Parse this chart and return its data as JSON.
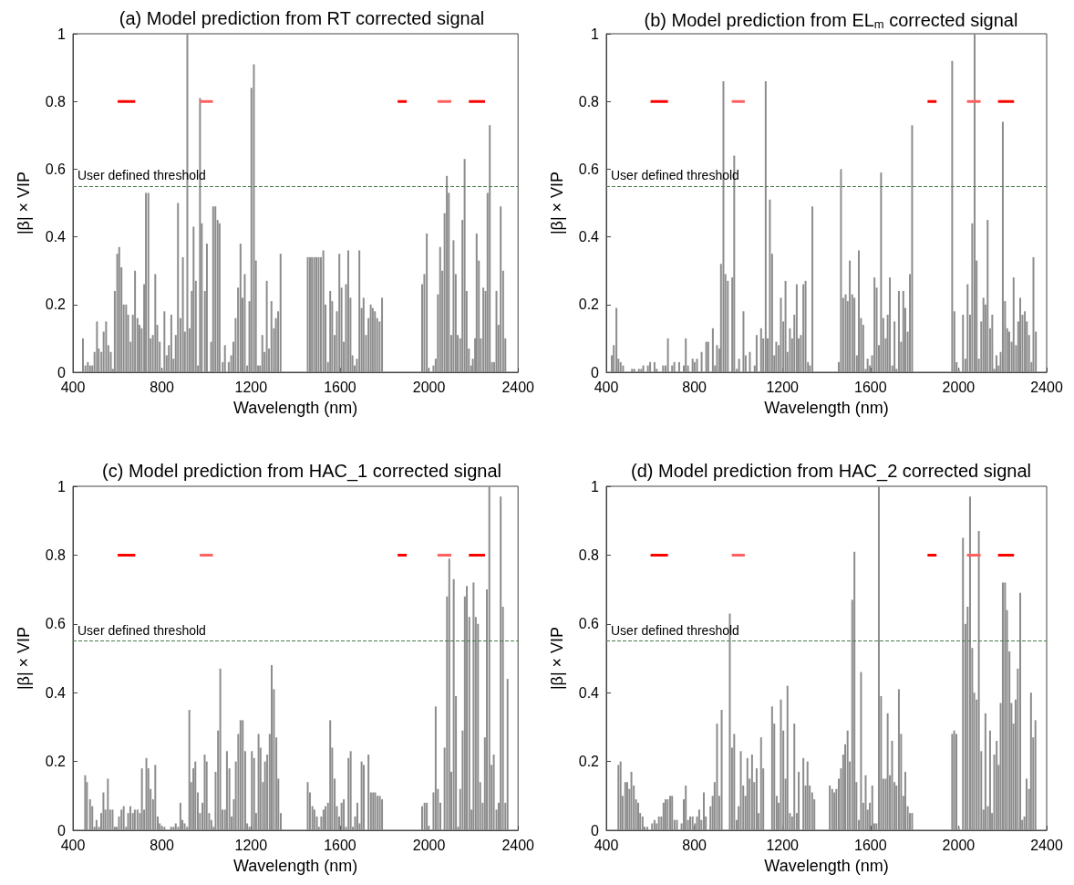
{
  "chart_data": [
    {
      "type": "bar",
      "title": "(a) Model prediction from RT corrected signal",
      "xlabel": "Wavelength (nm)",
      "ylabel": "|β| × VIP",
      "xlim": [
        400,
        2400
      ],
      "xticks": [
        400,
        800,
        1200,
        1600,
        2000,
        2400
      ],
      "ylim": [
        0,
        1
      ],
      "yticks": [
        0,
        0.2,
        0.4,
        0.6,
        0.8,
        1
      ],
      "marker": "none",
      "grid": false,
      "ref_lines": [
        {
          "axis": "y",
          "value": 0.55,
          "label": "User defined threshold",
          "color": "#4a7a4a",
          "line_style": "dashed"
        }
      ],
      "series": [
        {
          "color": "#8c8c8c",
          "x": [
            445,
            456,
            467,
            477,
            487,
            497,
            508,
            516,
            528,
            538,
            549,
            559,
            570,
            579,
            588,
            599,
            608,
            618,
            628,
            639,
            648,
            659,
            669,
            679,
            690,
            699,
            709,
            720,
            728,
            739,
            749,
            759,
            770,
            779,
            790,
            800,
            811,
            821,
            831,
            842,
            852,
            862,
            872,
            883,
            894,
            903,
            914,
            924,
            934,
            942,
            952,
            962,
            971,
            979,
            993,
            1002,
            1021,
            1030,
            1040,
            1050,
            1059,
            1073,
            1083,
            1100,
            1111,
            1121,
            1131,
            1142,
            1153,
            1162,
            1172,
            1183,
            1193,
            1202,
            1213,
            1222,
            1232,
            1241,
            1251,
            1261,
            1271,
            1281,
            1292,
            1303,
            1312,
            1322,
            1333,
            1455,
            1465,
            1474,
            1484,
            1494,
            1504,
            1514,
            1525,
            1535,
            1546,
            1556,
            1565,
            1576,
            1586,
            1597,
            1607,
            1617,
            1627,
            1637,
            1647,
            1656,
            1666,
            1676,
            1687,
            1697,
            1706,
            1717,
            1728,
            1738,
            1747,
            1757,
            1767,
            1778,
            1789,
            1969,
            1979,
            1990,
            1999,
            2020,
            2030,
            2040,
            2050,
            2060,
            2070,
            2080,
            2089,
            2100,
            2110,
            2120,
            2129,
            2140,
            2150,
            2160,
            2169,
            2179,
            2189,
            2197,
            2207,
            2214,
            2224,
            2233,
            2244,
            2254,
            2263,
            2273,
            2283,
            2293,
            2303,
            2312,
            2322,
            2333,
            2343
          ],
          "values": [
            0.1,
            0.02,
            0.03,
            0.02,
            0.02,
            0.06,
            0.15,
            0.07,
            0.06,
            0.12,
            0.15,
            0.08,
            0.06,
            0.01,
            0.24,
            0.35,
            0.37,
            0.31,
            0.2,
            0.2,
            0.17,
            0.09,
            0.17,
            0.3,
            0.16,
            0.14,
            0.13,
            0.26,
            0.53,
            0.53,
            0.1,
            0.11,
            0.29,
            0.14,
            0.09,
            0.01,
            0.18,
            0.05,
            0.08,
            0.17,
            0.04,
            0.11,
            0.5,
            0.16,
            0.34,
            0.12,
            1.0,
            0.13,
            0.24,
            0.43,
            0.27,
            0.02,
            0.81,
            0.44,
            0.24,
            0.38,
            0.09,
            0.49,
            0.49,
            0.45,
            0.44,
            0.03,
            0.08,
            0.03,
            0.05,
            0.09,
            0.16,
            0.25,
            0.38,
            0.22,
            0.29,
            0.02,
            0.21,
            0.84,
            0.91,
            0.33,
            0.02,
            0.02,
            0.11,
            0.06,
            0.27,
            0.07,
            0.21,
            0.13,
            0.16,
            0.18,
            0.35,
            0.34,
            0.34,
            0.34,
            0.34,
            0.34,
            0.34,
            0.34,
            0.36,
            0.2,
            0.03,
            0.24,
            0.21,
            0.11,
            0.18,
            0.35,
            0.25,
            0.09,
            0.26,
            0.36,
            0.22,
            0.05,
            0.02,
            0.04,
            0.36,
            0.19,
            0.22,
            0.11,
            0.16,
            0.2,
            0.19,
            0.18,
            0.16,
            0.15,
            0.22,
            0.26,
            0.29,
            0.41,
            0.01,
            0.02,
            0.04,
            0.23,
            0.37,
            0.3,
            0.47,
            0.58,
            0.53,
            0.11,
            0.39,
            0.29,
            0.11,
            0.1,
            0.45,
            0.63,
            0.24,
            0.07,
            0.02,
            0.04,
            0.1,
            0.41,
            0.33,
            0.1,
            0.25,
            0.24,
            0.53,
            0.73,
            0.03,
            0.03,
            0.24,
            0.14,
            0.49,
            0.3,
            0.1
          ]
        },
        {
          "type": "line",
          "color": "#ff0000",
          "x": [
            601,
            680,
            1270,
            1859,
            1900,
            2040,
            2179,
            2252
          ],
          "values": [
            0.8,
            0.8,
            null,
            0.8,
            0.8,
            null,
            0.8,
            0.8
          ]
        },
        {
          "type": "line",
          "color": "#ff6060",
          "x": [
            970,
            1029,
            1530,
            2038,
            2100
          ],
          "values": [
            0.8,
            0.8,
            null,
            0.8,
            0.8
          ]
        }
      ]
    },
    {
      "type": "bar",
      "title": "(b) Model prediction from EL$_{m}$ corrected signal",
      "xlabel": "Wavelength (nm)",
      "ylabel": "|β| × VIP",
      "xlim": [
        400,
        2400
      ],
      "xticks": [
        400,
        800,
        1200,
        1600,
        2000,
        2400
      ],
      "ylim": [
        0,
        1
      ],
      "yticks": [
        0,
        0.2,
        0.4,
        0.6,
        0.8,
        1
      ],
      "marker": "none",
      "grid": false,
      "ref_lines": [
        {
          "axis": "y",
          "value": 0.55,
          "label": "User defined threshold",
          "color": "#4a7a4a",
          "line_style": "dashed"
        }
      ],
      "series": [
        {
          "color": "#8c8c8c",
          "x": [
            425,
            434,
            446,
            455,
            465,
            476,
            497,
            517,
            527,
            548,
            559,
            568,
            589,
            599,
            619,
            629,
            658,
            669,
            680,
            699,
            709,
            731,
            752,
            761,
            771,
            792,
            801,
            812,
            833,
            854,
            863,
            884,
            894,
            903,
            914,
            921,
            932,
            941,
            952,
            972,
            981,
            993,
            1003,
            1023,
            1033,
            1052,
            1074,
            1083,
            1103,
            1113,
            1124,
            1133,
            1143,
            1153,
            1163,
            1172,
            1183,
            1193,
            1204,
            1214,
            1223,
            1234,
            1244,
            1254,
            1265,
            1274,
            1284,
            1295,
            1305,
            1316,
            1325,
            1336,
            1456,
            1466,
            1476,
            1487,
            1496,
            1506,
            1517,
            1527,
            1538,
            1547,
            1557,
            1567,
            1578,
            1587,
            1597,
            1607,
            1618,
            1628,
            1638,
            1648,
            1658,
            1669,
            1678,
            1688,
            1699,
            1709,
            1718,
            1729,
            1739,
            1749,
            1758,
            1769,
            1779,
            1789,
            1971,
            1981,
            1991,
            2001,
            2020,
            2031,
            2041,
            2052,
            2062,
            2073,
            2082,
            2092,
            2103,
            2113,
            2122,
            2132,
            2143,
            2153,
            2162,
            2172,
            2182,
            2191,
            2201,
            2211,
            2221,
            2230,
            2241,
            2250,
            2261,
            2271,
            2280,
            2290,
            2301,
            2310,
            2320,
            2331,
            2340,
            2351
          ],
          "values": [
            0.05,
            0.08,
            0.19,
            0.04,
            0.03,
            0.02,
            0.0,
            0.01,
            0.01,
            0.01,
            0.01,
            0.02,
            0.02,
            0.03,
            0.03,
            0.01,
            0.02,
            0.02,
            0.1,
            0.02,
            0.03,
            0.03,
            0.02,
            0.1,
            0.02,
            0.04,
            0.03,
            0.04,
            0.06,
            0.09,
            0.09,
            0.13,
            0.02,
            0.08,
            0.07,
            0.32,
            0.86,
            0.29,
            0.27,
            0.28,
            0.64,
            0.01,
            0.04,
            0.18,
            0.05,
            0.06,
            0.02,
            0.11,
            0.13,
            0.1,
            0.86,
            0.1,
            0.51,
            0.35,
            0.05,
            0.09,
            0.08,
            0.22,
            0.15,
            0.27,
            0.06,
            0.13,
            0.1,
            0.17,
            0.26,
            0.1,
            0.11,
            0.26,
            0.27,
            0.03,
            0.02,
            0.49,
            0.03,
            0.6,
            0.22,
            0.23,
            0.21,
            0.33,
            0.23,
            0.22,
            0.05,
            0.36,
            0.16,
            0.14,
            0.01,
            0.04,
            0.02,
            0.05,
            0.28,
            0.25,
            0.08,
            0.59,
            0.16,
            0.1,
            0.17,
            0.28,
            0.02,
            0.15,
            0.01,
            0.24,
            0.09,
            0.24,
            0.19,
            0.12,
            0.29,
            0.73,
            0.92,
            0.18,
            0.03,
            0.01,
            0.17,
            0.04,
            0.26,
            0.17,
            0.44,
            1.0,
            0.33,
            0.04,
            0.15,
            0.22,
            0.2,
            0.45,
            0.13,
            0.17,
            0.01,
            0.05,
            0.02,
            0.06,
            0.74,
            0.21,
            0.13,
            0.12,
            0.09,
            0.28,
            0.08,
            0.15,
            0.22,
            0.17,
            0.18,
            0.15,
            0.11,
            0.03,
            0.34,
            0.12
          ]
        },
        {
          "type": "line",
          "color": "#ff0000",
          "x": [
            601,
            680,
            1270,
            1859,
            1900,
            2040,
            2179,
            2252
          ],
          "values": [
            0.8,
            0.8,
            null,
            0.8,
            0.8,
            null,
            0.8,
            0.8
          ]
        },
        {
          "type": "line",
          "color": "#ff6060",
          "x": [
            970,
            1029,
            1530,
            2038,
            2100
          ],
          "values": [
            0.8,
            0.8,
            null,
            0.8,
            0.8
          ]
        }
      ]
    },
    {
      "type": "bar",
      "title": "(c) Model prediction from HAC_1 corrected signal",
      "xlabel": "Wavelength (nm)",
      "ylabel": "|β| × VIP",
      "xlim": [
        400,
        2400
      ],
      "xticks": [
        400,
        800,
        1200,
        1600,
        2000,
        2400
      ],
      "ylim": [
        0,
        1
      ],
      "yticks": [
        0,
        0.2,
        0.4,
        0.6,
        0.8,
        1
      ],
      "marker": "none",
      "grid": false,
      "ref_lines": [
        {
          "axis": "y",
          "value": 0.55,
          "label": "User defined threshold",
          "color": "#4a7a4a",
          "line_style": "dashed"
        }
      ],
      "series": [
        {
          "color": "#8c8c8c",
          "x": [
            455,
            463,
            477,
            487,
            497,
            506,
            517,
            527,
            537,
            546,
            557,
            567,
            578,
            588,
            597,
            607,
            618,
            628,
            639,
            648,
            658,
            669,
            678,
            690,
            701,
            710,
            720,
            730,
            739,
            749,
            760,
            770,
            781,
            790,
            800,
            811,
            821,
            841,
            852,
            862,
            873,
            883,
            892,
            902,
            913,
            923,
            931,
            941,
            950,
            961,
            971,
            982,
            992,
            1001,
            1012,
            1022,
            1032,
            1041,
            1052,
            1062,
            1072,
            1083,
            1092,
            1103,
            1113,
            1123,
            1132,
            1143,
            1153,
            1163,
            1174,
            1183,
            1193,
            1204,
            1214,
            1223,
            1234,
            1243,
            1254,
            1263,
            1273,
            1284,
            1293,
            1303,
            1314,
            1323,
            1334,
            1455,
            1465,
            1476,
            1485,
            1496,
            1505,
            1516,
            1526,
            1535,
            1546,
            1556,
            1565,
            1576,
            1586,
            1596,
            1607,
            1617,
            1627,
            1638,
            1648,
            1658,
            1668,
            1678,
            1688,
            1697,
            1707,
            1718,
            1728,
            1739,
            1749,
            1758,
            1769,
            1779,
            1789,
            1969,
            1980,
            1990,
            1999,
            2020,
            2030,
            2040,
            2051,
            2070,
            2081,
            2091,
            2100,
            2111,
            2121,
            2131,
            2140,
            2151,
            2161,
            2170,
            2181,
            2191,
            2200,
            2210,
            2220,
            2230,
            2241,
            2251,
            2260,
            2271,
            2281,
            2291,
            2303,
            2313,
            2322,
            2332,
            2343,
            2353
          ],
          "values": [
            0.16,
            0.14,
            0.09,
            0.07,
            0.01,
            0.03,
            0.01,
            0.05,
            0.11,
            0.06,
            0.15,
            0.06,
            0.06,
            0.01,
            0.01,
            0.04,
            0.06,
            0.07,
            0.01,
            0.05,
            0.07,
            0.05,
            0.06,
            0.06,
            0.05,
            0.18,
            0.06,
            0.21,
            0.18,
            0.12,
            0.09,
            0.19,
            0.04,
            0.02,
            0.01,
            0.01,
            0.0,
            0.01,
            0.01,
            0.02,
            0.01,
            0.08,
            0.03,
            0.02,
            0.01,
            0.35,
            0.14,
            0.18,
            0.2,
            0.11,
            0.05,
            0.08,
            0.22,
            0.2,
            0.05,
            0.03,
            0.01,
            0.17,
            0.29,
            0.47,
            0.06,
            0.06,
            0.23,
            0.18,
            0.04,
            0.09,
            0.2,
            0.28,
            0.32,
            0.32,
            0.23,
            0.02,
            0.01,
            0.23,
            0.21,
            0.05,
            0.28,
            0.24,
            0.14,
            0.2,
            0.22,
            0.28,
            0.48,
            0.41,
            0.27,
            0.15,
            0.05,
            0.14,
            0.11,
            0.07,
            0.06,
            0.04,
            0.01,
            0.04,
            0.06,
            0.07,
            0.08,
            0.32,
            0.24,
            0.15,
            0.07,
            0.04,
            0.08,
            0.09,
            0.01,
            0.21,
            0.23,
            0.01,
            0.04,
            0.08,
            0.02,
            0.2,
            0.19,
            0.0,
            0.22,
            0.11,
            0.11,
            0.11,
            0.1,
            0.1,
            0.09,
            0.07,
            0.08,
            0.08,
            0.01,
            0.11,
            0.36,
            0.12,
            0.08,
            0.24,
            0.68,
            0.79,
            0.17,
            0.73,
            0.39,
            0.01,
            0.12,
            0.29,
            0.68,
            0.71,
            0.62,
            0.06,
            0.72,
            0.62,
            0.6,
            0.14,
            0.08,
            0.27,
            0.7,
            1.0,
            0.19,
            0.22,
            0.06,
            0.08,
            0.97,
            0.65,
            0.08,
            0.44
          ]
        },
        {
          "type": "line",
          "color": "#ff0000",
          "x": [
            601,
            680,
            1270,
            1859,
            1900,
            2040,
            2179,
            2252
          ],
          "values": [
            0.8,
            0.8,
            null,
            0.8,
            0.8,
            null,
            0.8,
            0.8
          ]
        },
        {
          "type": "line",
          "color": "#ff6060",
          "x": [
            970,
            1029,
            1530,
            2038,
            2100
          ],
          "values": [
            0.8,
            0.8,
            null,
            0.8,
            0.8
          ]
        }
      ]
    },
    {
      "type": "bar",
      "title": "(d) Model prediction from HAC_2 corrected signal",
      "xlabel": "Wavelength (nm)",
      "ylabel": "|β| × VIP",
      "xlim": [
        400,
        2400
      ],
      "xticks": [
        400,
        800,
        1200,
        1600,
        2000,
        2400
      ],
      "ylim": [
        0,
        1
      ],
      "yticks": [
        0,
        0.2,
        0.4,
        0.6,
        0.8,
        1
      ],
      "marker": "none",
      "grid": false,
      "ref_lines": [
        {
          "axis": "y",
          "value": 0.55,
          "label": "User defined threshold",
          "color": "#4a7a4a",
          "line_style": "dashed"
        }
      ],
      "series": [
        {
          "color": "#8c8c8c",
          "x": [
            455,
            465,
            474,
            486,
            495,
            505,
            514,
            525,
            535,
            545,
            554,
            565,
            574,
            586,
            596,
            608,
            619,
            629,
            639,
            650,
            660,
            669,
            679,
            690,
            699,
            710,
            721,
            742,
            752,
            761,
            771,
            781,
            792,
            803,
            812,
            822,
            832,
            843,
            852,
            873,
            883,
            892,
            903,
            913,
            924,
            961,
            971,
            981,
            992,
            1001,
            1011,
            1022,
            1032,
            1041,
            1051,
            1062,
            1072,
            1083,
            1092,
            1103,
            1113,
            1153,
            1163,
            1174,
            1183,
            1193,
            1204,
            1214,
            1223,
            1234,
            1244,
            1254,
            1265,
            1274,
            1295,
            1305,
            1314,
            1324,
            1335,
            1345,
            1415,
            1426,
            1436,
            1445,
            1456,
            1466,
            1476,
            1485,
            1496,
            1506,
            1517,
            1527,
            1536,
            1547,
            1557,
            1567,
            1578,
            1587,
            1597,
            1608,
            1617,
            1627,
            1638,
            1648,
            1658,
            1669,
            1678,
            1688,
            1698,
            1709,
            1718,
            1729,
            1739,
            1749,
            1758,
            1769,
            1779,
            1789,
            1971,
            1980,
            1990,
            2001,
            2020,
            2031,
            2041,
            2052,
            2062,
            2071,
            2082,
            2092,
            2103,
            2113,
            2122,
            2133,
            2143,
            2152,
            2162,
            2173,
            2182,
            2191,
            2201,
            2211,
            2220,
            2231,
            2240,
            2249,
            2259,
            2269,
            2280,
            2289,
            2299,
            2309,
            2320,
            2329,
            2339,
            2349
          ],
          "values": [
            0.19,
            0.2,
            0.1,
            0.14,
            0.14,
            0.12,
            0.17,
            0.13,
            0.09,
            0.08,
            0.05,
            0.04,
            0.01,
            0.01,
            0.0,
            0.02,
            0.03,
            0.02,
            0.04,
            0.04,
            0.08,
            0.09,
            0.09,
            0.1,
            0.1,
            0.03,
            0.03,
            0.02,
            0.09,
            0.13,
            0.03,
            0.04,
            0.04,
            0.02,
            0.04,
            0.06,
            0.03,
            0.11,
            0.04,
            0.07,
            0.1,
            0.14,
            0.31,
            0.1,
            0.35,
            0.63,
            0.24,
            0.28,
            0.03,
            0.07,
            0.23,
            0.13,
            0.1,
            0.21,
            0.15,
            0.22,
            0.14,
            0.18,
            0.05,
            0.27,
            0.18,
            0.36,
            0.31,
            0.1,
            0.08,
            0.38,
            0.29,
            0.15,
            0.42,
            0.05,
            0.04,
            0.31,
            0.05,
            0.17,
            0.21,
            0.13,
            0.2,
            0.13,
            0.11,
            0.09,
            0.13,
            0.12,
            0.11,
            0.12,
            0.15,
            0.18,
            0.22,
            0.25,
            0.29,
            0.2,
            0.67,
            0.81,
            0.14,
            0.03,
            0.46,
            0.08,
            0.16,
            0.06,
            0.08,
            0.13,
            0.02,
            0.02,
            1.0,
            0.39,
            0.15,
            0.15,
            0.34,
            0.16,
            0.26,
            0.14,
            0.13,
            0.41,
            0.28,
            0.1,
            0.17,
            0.07,
            0.05,
            0.05,
            0.28,
            0.29,
            0.28,
            0.01,
            0.85,
            0.6,
            0.65,
            0.97,
            0.53,
            0.4,
            0.38,
            0.87,
            0.23,
            0.06,
            0.34,
            0.07,
            0.29,
            0.05,
            0.22,
            0.26,
            0.19,
            0.37,
            0.72,
            0.72,
            0.64,
            0.52,
            0.37,
            0.31,
            0.38,
            0.47,
            0.69,
            0.03,
            0.04,
            0.15,
            0.12,
            0.4,
            0.27,
            0.32
          ]
        },
        {
          "type": "line",
          "color": "#ff0000",
          "x": [
            601,
            680,
            1270,
            1859,
            1900,
            2040,
            2179,
            2252
          ],
          "values": [
            0.8,
            0.8,
            null,
            0.8,
            0.8,
            null,
            0.8,
            0.8
          ]
        },
        {
          "type": "line",
          "color": "#ff6060",
          "x": [
            970,
            1029,
            1530,
            2038,
            2100
          ],
          "values": [
            0.8,
            0.8,
            null,
            0.8,
            0.8
          ]
        }
      ]
    }
  ]
}
